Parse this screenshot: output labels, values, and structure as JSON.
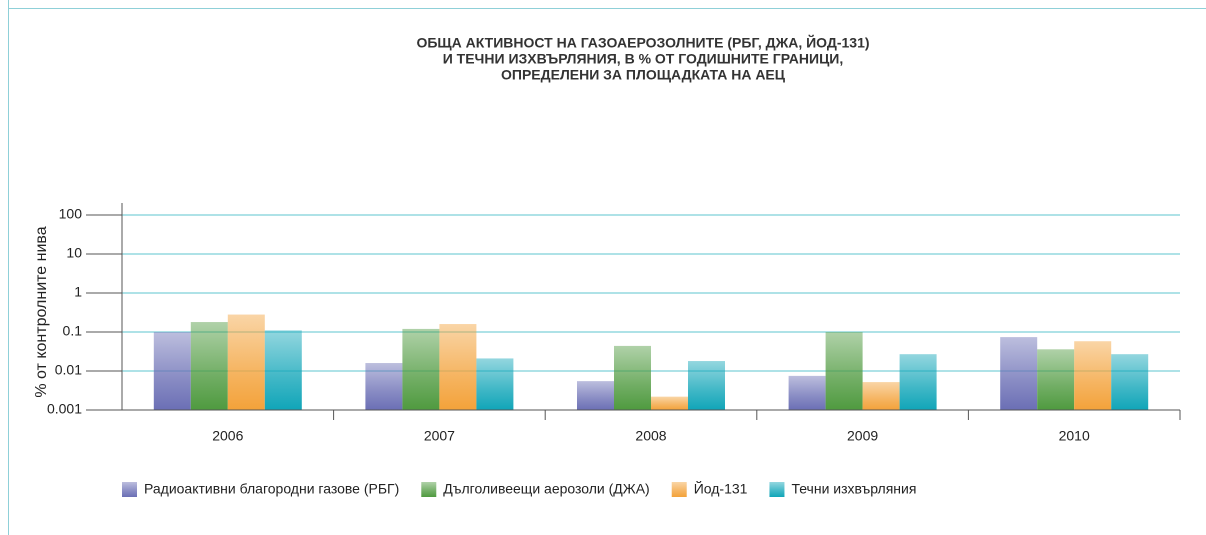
{
  "chart_data": {
    "type": "bar",
    "title": [
      "ОБЩА АКТИВНОСТ НА ГАЗОАЕРОЗОЛНИТЕ (РБГ, ДЖА, ЙОД-131)",
      "И ТЕЧНИ ИЗХВЪРЛЯНИЯ, В % ОТ ГОДИШНИТЕ ГРАНИЦИ,",
      "ОПРЕДЕЛЕНИ ЗА ПЛОЩАДКАТА НА АЕЦ"
    ],
    "y_label": "% от контролните нива",
    "categories": [
      "2006",
      "2007",
      "2008",
      "2009",
      "2010"
    ],
    "series": [
      {
        "name": "Радиоактивни благородни газове (РБГ)",
        "color": "#6b6fb5",
        "values": [
          0.1,
          0.016,
          0.0055,
          0.0075,
          0.074
        ]
      },
      {
        "name": "Дълголивеещи аерозоли (ДЖА)",
        "color": "#4f9a3f",
        "values": [
          0.18,
          0.12,
          0.044,
          0.1,
          0.036
        ]
      },
      {
        "name": "Йод-131",
        "color": "#f3a23a",
        "values": [
          0.28,
          0.16,
          0.0022,
          0.0052,
          0.058
        ]
      },
      {
        "name": "Течни изхвърляния",
        "color": "#10a5b8",
        "values": [
          0.11,
          0.021,
          0.018,
          0.027,
          0.027
        ]
      }
    ],
    "ylim": [
      0.001,
      100
    ],
    "yticks": [
      0.001,
      0.01,
      0.1,
      1,
      10,
      100
    ],
    "log": true,
    "grid": true,
    "legend": "bottom"
  }
}
